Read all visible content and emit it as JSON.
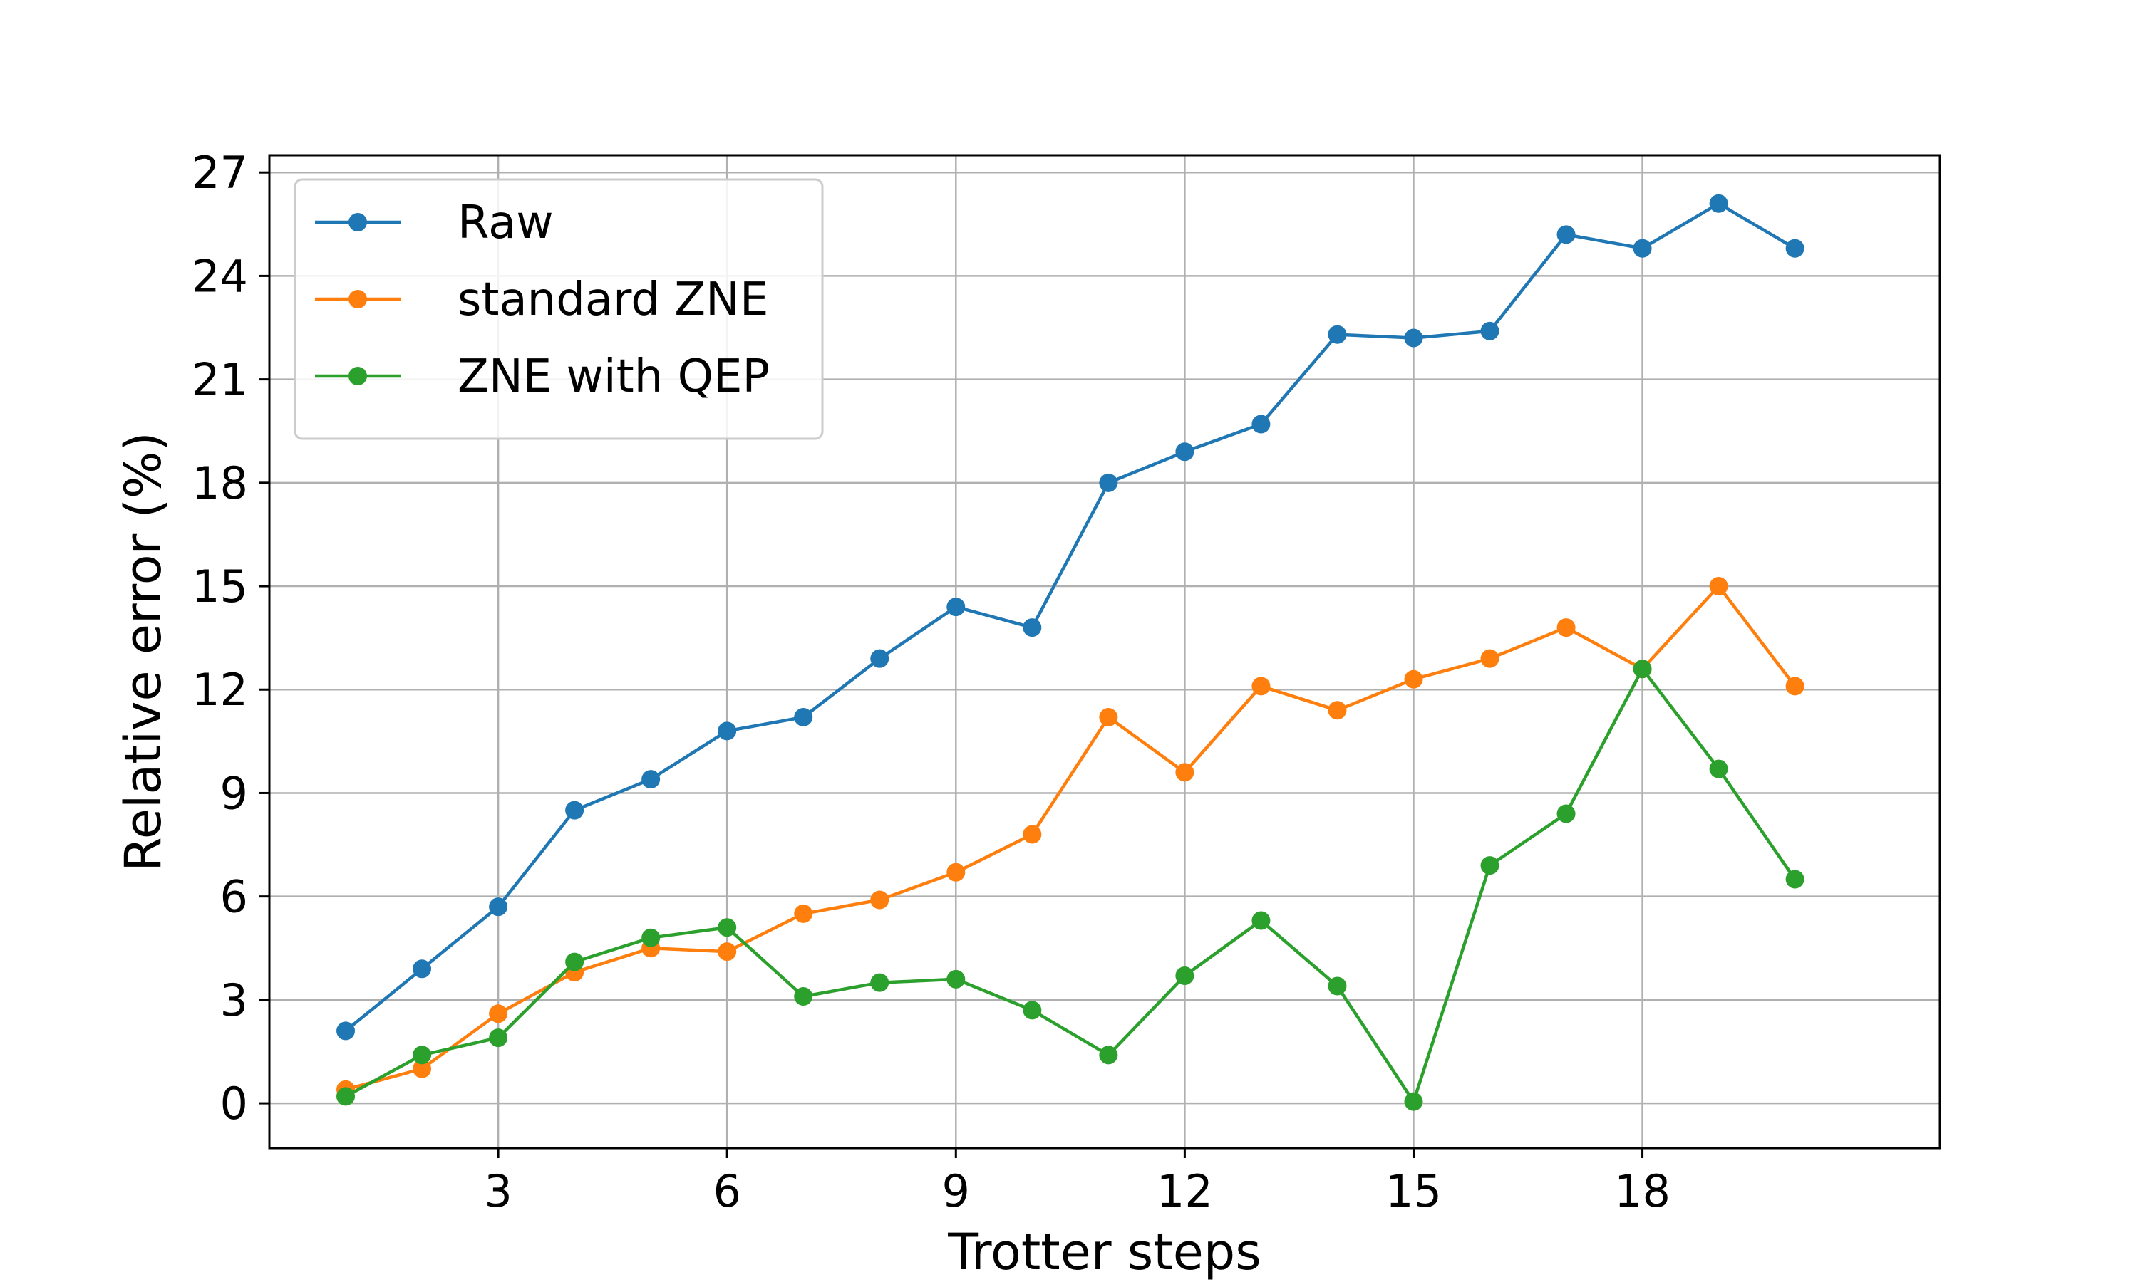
{
  "chart_data": {
    "type": "line",
    "xlabel": "Trotter steps",
    "ylabel": "Relative error (%)",
    "xlim": [
      0,
      21.9
    ],
    "ylim": [
      -1.3,
      27.5
    ],
    "x_ticks": [
      3,
      6,
      9,
      12,
      15,
      18
    ],
    "y_ticks": [
      0,
      3,
      6,
      9,
      12,
      15,
      18,
      21,
      24,
      27
    ],
    "grid": true,
    "legend_position": "upper-left",
    "x": [
      1,
      2,
      3,
      4,
      5,
      6,
      7,
      8,
      9,
      10,
      11,
      12,
      13,
      14,
      15,
      16,
      17,
      18,
      19,
      20
    ],
    "series": [
      {
        "name": "Raw",
        "color": "#1f77b4",
        "values": [
          2.1,
          3.9,
          5.7,
          8.5,
          9.4,
          10.8,
          11.2,
          12.9,
          14.4,
          13.8,
          18.0,
          18.9,
          19.7,
          22.3,
          22.2,
          22.4,
          25.2,
          24.8,
          26.1,
          24.8
        ]
      },
      {
        "name": "standard ZNE",
        "color": "#ff7f0e",
        "values": [
          0.4,
          1.0,
          2.6,
          3.8,
          4.5,
          4.4,
          5.5,
          5.9,
          6.7,
          7.8,
          11.2,
          9.6,
          12.1,
          11.4,
          12.3,
          12.9,
          13.8,
          12.6,
          15.0,
          12.1
        ]
      },
      {
        "name": "ZNE with QEP",
        "color": "#2ca02c",
        "values": [
          0.2,
          1.4,
          1.9,
          4.1,
          4.8,
          5.1,
          3.1,
          3.5,
          3.6,
          2.7,
          1.4,
          3.7,
          5.3,
          3.4,
          0.05,
          6.9,
          8.4,
          12.6,
          9.7,
          6.5
        ]
      }
    ]
  }
}
